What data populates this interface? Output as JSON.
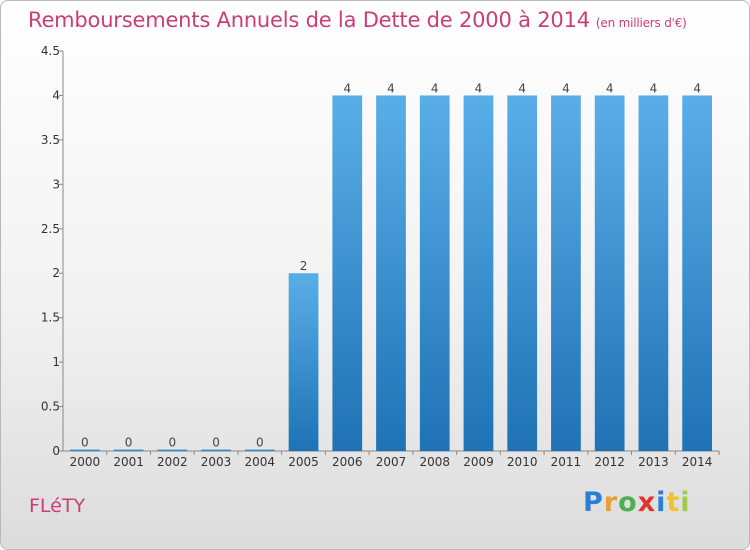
{
  "header": {
    "title": "Remboursements Annuels de la Dette de 2000 à 2014",
    "unit": "(en milliers d'€)"
  },
  "commune": "FLéTY",
  "logo": {
    "text": "Proxiti",
    "letter_colors": [
      "#2a7fd4",
      "#e8a13a",
      "#4caf50",
      "#e0332d",
      "#2a7fd4",
      "#f2c12e",
      "#9ccc4a"
    ]
  },
  "colors": {
    "accent": "#cc3d76",
    "bar_top": "#5aaee8",
    "bar_bottom": "#1f72b4"
  },
  "chart_data": {
    "type": "bar",
    "title": "Remboursements Annuels de la Dette de 2000 à 2014",
    "xlabel": "",
    "ylabel": "",
    "categories": [
      "2000",
      "2001",
      "2002",
      "2003",
      "2004",
      "2005",
      "2006",
      "2007",
      "2008",
      "2009",
      "2010",
      "2011",
      "2012",
      "2013",
      "2014"
    ],
    "values": [
      0,
      0,
      0,
      0,
      0,
      2,
      4,
      4,
      4,
      4,
      4,
      4,
      4,
      4,
      4
    ],
    "data_labels": [
      "0",
      "0",
      "0",
      "0",
      "0",
      "2",
      "4",
      "4",
      "4",
      "4",
      "4",
      "4",
      "4",
      "4",
      "4"
    ],
    "ylim": [
      0,
      4.5
    ],
    "yticks": [
      0,
      0.5,
      1,
      1.5,
      2,
      2.5,
      3,
      3.5,
      4,
      4.5
    ],
    "ytick_labels": [
      "0",
      "0.5",
      "1",
      "1.5",
      "2",
      "2.5",
      "3",
      "3.5",
      "4",
      "4.5"
    ],
    "grid": false,
    "legend": "none"
  }
}
